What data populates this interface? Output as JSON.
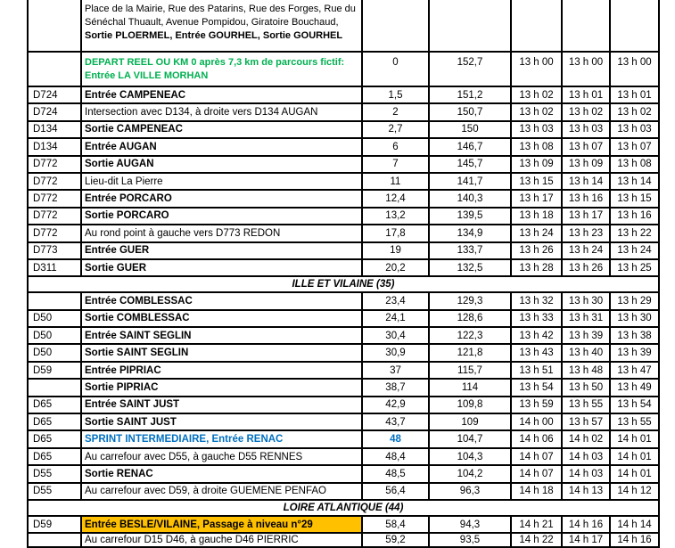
{
  "colors": {
    "depart_green": "#00B050",
    "sprint_blue": "#0070C0",
    "level_crossing_orange": "#FFC000",
    "border_black": "#000000"
  },
  "table": {
    "rows": [
      {
        "style": "top",
        "road": "",
        "desc": [
          {
            "t": "Place de la Mairie, Rue des Patarins, Rue des Forges, Rue du Sénéchal Thuault, Avenue Pompidou, Giratoire Bouchaud, ",
            "b": false
          },
          {
            "t": "Sortie PLOERMEL, Entrée GOURHEL, Sortie GOURHEL",
            "b": true
          }
        ],
        "km": "",
        "rem": "",
        "t1": "",
        "t2": "",
        "t3": ""
      },
      {
        "style": "depart",
        "road": "",
        "desc": [
          {
            "t": "DEPART REEL OU KM 0 après 7,3 km de parcours fictif: Entrée LA VILLE MORHAN",
            "b": true
          }
        ],
        "km": "0",
        "rem": "152,7",
        "t1": "13 h 00",
        "t2": "13 h 00",
        "t3": "13 h 00"
      },
      {
        "style": "item",
        "road": "D724",
        "desc": [
          {
            "t": "Entrée CAMPENEAC",
            "b": true
          }
        ],
        "km": "1,5",
        "rem": "151,2",
        "t1": "13 h 02",
        "t2": "13 h 01",
        "t3": "13 h 01"
      },
      {
        "style": "item",
        "road": "D724",
        "desc": [
          {
            "t": "Intersection avec D134, à droite vers D134 AUGAN",
            "b": false
          }
        ],
        "km": "2",
        "rem": "150,7",
        "t1": "13 h 02",
        "t2": "13 h 02",
        "t3": "13 h 02"
      },
      {
        "style": "item",
        "road": "D134",
        "desc": [
          {
            "t": "Sortie CAMPENEAC",
            "b": true
          }
        ],
        "km": "2,7",
        "rem": "150",
        "t1": "13 h 03",
        "t2": "13 h 03",
        "t3": "13 h 03"
      },
      {
        "style": "item",
        "road": "D134",
        "desc": [
          {
            "t": "Entrée AUGAN",
            "b": true
          }
        ],
        "km": "6",
        "rem": "146,7",
        "t1": "13 h 08",
        "t2": "13 h 07",
        "t3": "13 h 07"
      },
      {
        "style": "item",
        "road": "D772",
        "desc": [
          {
            "t": "Sortie AUGAN",
            "b": true
          }
        ],
        "km": "7",
        "rem": "145,7",
        "t1": "13 h 09",
        "t2": "13 h 09",
        "t3": "13 h 08"
      },
      {
        "style": "item",
        "road": "D772",
        "desc": [
          {
            "t": "Lieu-dit La Pierre",
            "b": false
          }
        ],
        "km": "11",
        "rem": "141,7",
        "t1": "13 h 15",
        "t2": "13 h 14",
        "t3": "13 h 14"
      },
      {
        "style": "item",
        "road": "D772",
        "desc": [
          {
            "t": "Entrée PORCARO",
            "b": true
          }
        ],
        "km": "12,4",
        "rem": "140,3",
        "t1": "13 h 17",
        "t2": "13 h 16",
        "t3": "13 h 15"
      },
      {
        "style": "item",
        "road": "D772",
        "desc": [
          {
            "t": "Sortie PORCARO",
            "b": true
          }
        ],
        "km": "13,2",
        "rem": "139,5",
        "t1": "13 h 18",
        "t2": "13 h 17",
        "t3": "13 h 16"
      },
      {
        "style": "item",
        "road": "D772",
        "desc": [
          {
            "t": "Au rond point à gauche vers D773 REDON",
            "b": false
          }
        ],
        "km": "17,8",
        "rem": "134,9",
        "t1": "13 h 24",
        "t2": "13 h 23",
        "t3": "13 h 22"
      },
      {
        "style": "item",
        "road": "D773",
        "desc": [
          {
            "t": "Entrée GUER",
            "b": true
          }
        ],
        "km": "19",
        "rem": "133,7",
        "t1": "13 h 26",
        "t2": "13 h 24",
        "t3": "13 h 24"
      },
      {
        "style": "item",
        "road": "D311",
        "desc": [
          {
            "t": "Sortie GUER",
            "b": true
          }
        ],
        "km": "20,2",
        "rem": "132,5",
        "t1": "13 h 28",
        "t2": "13 h 26",
        "t3": "13 h 25"
      },
      {
        "style": "section",
        "label": "ILLE ET VILAINE (35)"
      },
      {
        "style": "item",
        "road": "",
        "desc": [
          {
            "t": "Entrée COMBLESSAC",
            "b": true
          }
        ],
        "km": "23,4",
        "rem": "129,3",
        "t1": "13 h 32",
        "t2": "13 h 30",
        "t3": "13 h 29"
      },
      {
        "style": "item",
        "road": "D50",
        "desc": [
          {
            "t": "Sortie COMBLESSAC",
            "b": true
          }
        ],
        "km": "24,1",
        "rem": "128,6",
        "t1": "13 h 33",
        "t2": "13 h 31",
        "t3": "13 h 30"
      },
      {
        "style": "item",
        "road": "D50",
        "desc": [
          {
            "t": "Entrée SAINT SEGLIN",
            "b": true
          }
        ],
        "km": "30,4",
        "rem": "122,3",
        "t1": "13 h 42",
        "t2": "13 h 39",
        "t3": "13 h 38"
      },
      {
        "style": "item",
        "road": "D50",
        "desc": [
          {
            "t": "Sortie SAINT SEGLIN",
            "b": true
          }
        ],
        "km": "30,9",
        "rem": "121,8",
        "t1": "13 h 43",
        "t2": "13 h 40",
        "t3": "13 h 39"
      },
      {
        "style": "item",
        "road": "D59",
        "desc": [
          {
            "t": "Entrée PIPRIAC",
            "b": true
          }
        ],
        "km": "37",
        "rem": "115,7",
        "t1": "13 h 51",
        "t2": "13 h 48",
        "t3": "13 h 47"
      },
      {
        "style": "item",
        "road": "",
        "desc": [
          {
            "t": "Sortie PIPRIAC",
            "b": true
          }
        ],
        "km": "38,7",
        "rem": "114",
        "t1": "13 h 54",
        "t2": "13 h 50",
        "t3": "13 h 49"
      },
      {
        "style": "item",
        "road": "D65",
        "desc": [
          {
            "t": "Entrée SAINT JUST",
            "b": true
          }
        ],
        "km": "42,9",
        "rem": "109,8",
        "t1": "13 h 59",
        "t2": "13 h 55",
        "t3": "13 h 54"
      },
      {
        "style": "item",
        "road": "D65",
        "desc": [
          {
            "t": "Sortie SAINT JUST",
            "b": true
          }
        ],
        "km": "43,7",
        "rem": "109",
        "t1": "14 h 00",
        "t2": "13 h 57",
        "t3": "13 h 55"
      },
      {
        "style": "sprint",
        "road": "D65",
        "desc": [
          {
            "t": "SPRINT INTERMEDIAIRE, Entrée RENAC",
            "b": true
          }
        ],
        "km": "48",
        "rem": "104,7",
        "t1": "14 h 06",
        "t2": "14 h 02",
        "t3": "14 h 01"
      },
      {
        "style": "item",
        "road": "D65",
        "desc": [
          {
            "t": "Au carrefour avec D55, à gauche D55 RENNES",
            "b": false
          }
        ],
        "km": "48,4",
        "rem": "104,3",
        "t1": "14 h 07",
        "t2": "14 h 03",
        "t3": "14 h 01"
      },
      {
        "style": "item",
        "road": "D55",
        "desc": [
          {
            "t": "Sortie RENAC",
            "b": true
          }
        ],
        "km": "48,5",
        "rem": "104,2",
        "t1": "14 h 07",
        "t2": "14 h 03",
        "t3": "14 h 01"
      },
      {
        "style": "item",
        "road": "D55",
        "desc": [
          {
            "t": "Au carrefour avec D59, à droite GUEMENE PENFAO",
            "b": false
          }
        ],
        "km": "56,4",
        "rem": "96,3",
        "t1": "14 h 18",
        "t2": "14 h 13",
        "t3": "14 h 12"
      },
      {
        "style": "section",
        "label": "LOIRE ATLANTIQUE (44)"
      },
      {
        "style": "pn",
        "road": "D59",
        "desc": [
          {
            "t": "Entrée BESLE/VILAINE, Passage à niveau n°29",
            "b": true
          }
        ],
        "km": "58,4",
        "rem": "94,3",
        "t1": "14 h 21",
        "t2": "14 h 16",
        "t3": "14 h 14"
      },
      {
        "style": "bottom",
        "road": "",
        "desc": [
          {
            "t": "Au carrefour D15 D46, à gauche D46 PIERRIC",
            "b": false
          }
        ],
        "km": "59,2",
        "rem": "93,5",
        "t1": "14 h 22",
        "t2": "14 h 17",
        "t3": "14 h 16"
      }
    ]
  }
}
